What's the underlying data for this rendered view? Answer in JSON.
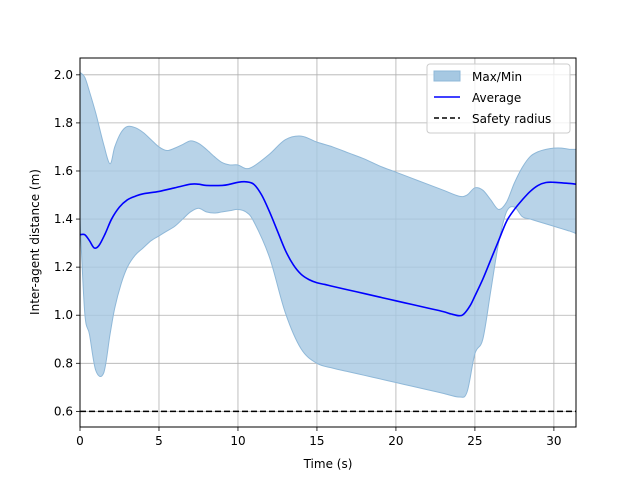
{
  "chart_data": {
    "type": "area",
    "title": "",
    "xlabel": "Time (s)",
    "ylabel": "Inter-agent distance (m)",
    "xlim": [
      0,
      31.4
    ],
    "ylim": [
      0.535,
      2.07
    ],
    "xticks": [
      0,
      5,
      10,
      15,
      20,
      25,
      30
    ],
    "yticks": [
      0.6,
      0.8,
      1.0,
      1.2,
      1.4,
      1.6,
      1.8,
      2.0
    ],
    "xtick_labels": [
      "0",
      "5",
      "10",
      "15",
      "20",
      "25",
      "30"
    ],
    "ytick_labels": [
      "0.6",
      "0.8",
      "1.0",
      "1.2",
      "1.4",
      "1.6",
      "1.8",
      "2.0"
    ],
    "grid": true,
    "legend_position": "top-right",
    "series": [
      {
        "name": "Max/Min",
        "kind": "band",
        "color": "#a6c8e2",
        "x": [
          0,
          0.3,
          0.6,
          1.0,
          1.5,
          1.9,
          2.2,
          2.6,
          3.0,
          3.5,
          4.0,
          4.5,
          5.0,
          5.5,
          6.0,
          6.5,
          7.0,
          7.5,
          8.0,
          8.5,
          9.0,
          9.5,
          10.0,
          10.5,
          11.0,
          12.0,
          13.0,
          14.0,
          15.0,
          16.0,
          17.0,
          18.0,
          19.0,
          20.0,
          21.0,
          22.0,
          23.0,
          24.0,
          24.5,
          25.0,
          25.5,
          26.0,
          26.5,
          27.0,
          27.5,
          28.0,
          28.5,
          29.0,
          29.5,
          30.0,
          30.5,
          31.0,
          31.4
        ],
        "upper": [
          2.01,
          1.99,
          1.93,
          1.84,
          1.71,
          1.63,
          1.7,
          1.76,
          1.785,
          1.78,
          1.76,
          1.73,
          1.7,
          1.685,
          1.695,
          1.71,
          1.725,
          1.715,
          1.69,
          1.66,
          1.635,
          1.625,
          1.625,
          1.61,
          1.62,
          1.67,
          1.73,
          1.745,
          1.72,
          1.7,
          1.675,
          1.65,
          1.62,
          1.595,
          1.57,
          1.545,
          1.52,
          1.495,
          1.5,
          1.53,
          1.52,
          1.48,
          1.44,
          1.47,
          1.55,
          1.615,
          1.66,
          1.68,
          1.69,
          1.695,
          1.695,
          1.69,
          1.69
        ],
        "lower": [
          1.4,
          1.01,
          0.92,
          0.77,
          0.76,
          0.92,
          1.03,
          1.13,
          1.2,
          1.25,
          1.28,
          1.31,
          1.33,
          1.35,
          1.37,
          1.4,
          1.43,
          1.445,
          1.43,
          1.425,
          1.43,
          1.435,
          1.44,
          1.43,
          1.39,
          1.24,
          1.01,
          0.86,
          0.8,
          0.78,
          0.765,
          0.75,
          0.735,
          0.72,
          0.705,
          0.69,
          0.675,
          0.66,
          0.68,
          0.84,
          0.9,
          1.1,
          1.3,
          1.43,
          1.45,
          1.41,
          1.4,
          1.39,
          1.38,
          1.37,
          1.36,
          1.35,
          1.34
        ]
      },
      {
        "name": "Average",
        "kind": "line",
        "color": "#0000ff",
        "x": [
          0,
          0.3,
          0.6,
          0.9,
          1.2,
          1.6,
          2.0,
          2.5,
          3.0,
          3.5,
          4.0,
          5.0,
          6.0,
          7.0,
          7.5,
          8.0,
          9.0,
          9.5,
          10.0,
          10.5,
          11.0,
          11.5,
          12.0,
          12.5,
          13.0,
          13.5,
          14.0,
          14.5,
          15.0,
          15.5,
          16.0,
          17.0,
          18.0,
          19.0,
          20.0,
          21.0,
          22.0,
          23.0,
          23.5,
          24.0,
          24.3,
          24.7,
          25.0,
          25.5,
          26.0,
          26.5,
          27.0,
          27.5,
          28.0,
          28.5,
          29.0,
          29.5,
          30.0,
          31.0,
          31.4
        ],
        "values": [
          1.335,
          1.335,
          1.31,
          1.28,
          1.29,
          1.34,
          1.4,
          1.45,
          1.48,
          1.495,
          1.505,
          1.515,
          1.53,
          1.545,
          1.545,
          1.54,
          1.54,
          1.545,
          1.553,
          1.555,
          1.545,
          1.5,
          1.43,
          1.35,
          1.27,
          1.21,
          1.17,
          1.148,
          1.135,
          1.128,
          1.12,
          1.105,
          1.09,
          1.075,
          1.06,
          1.045,
          1.03,
          1.015,
          1.005,
          0.998,
          1.005,
          1.04,
          1.08,
          1.15,
          1.23,
          1.31,
          1.39,
          1.44,
          1.48,
          1.515,
          1.54,
          1.552,
          1.553,
          1.548,
          1.545
        ]
      },
      {
        "name": "Safety radius",
        "kind": "hline",
        "color": "#000000",
        "value": 0.6
      }
    ]
  }
}
